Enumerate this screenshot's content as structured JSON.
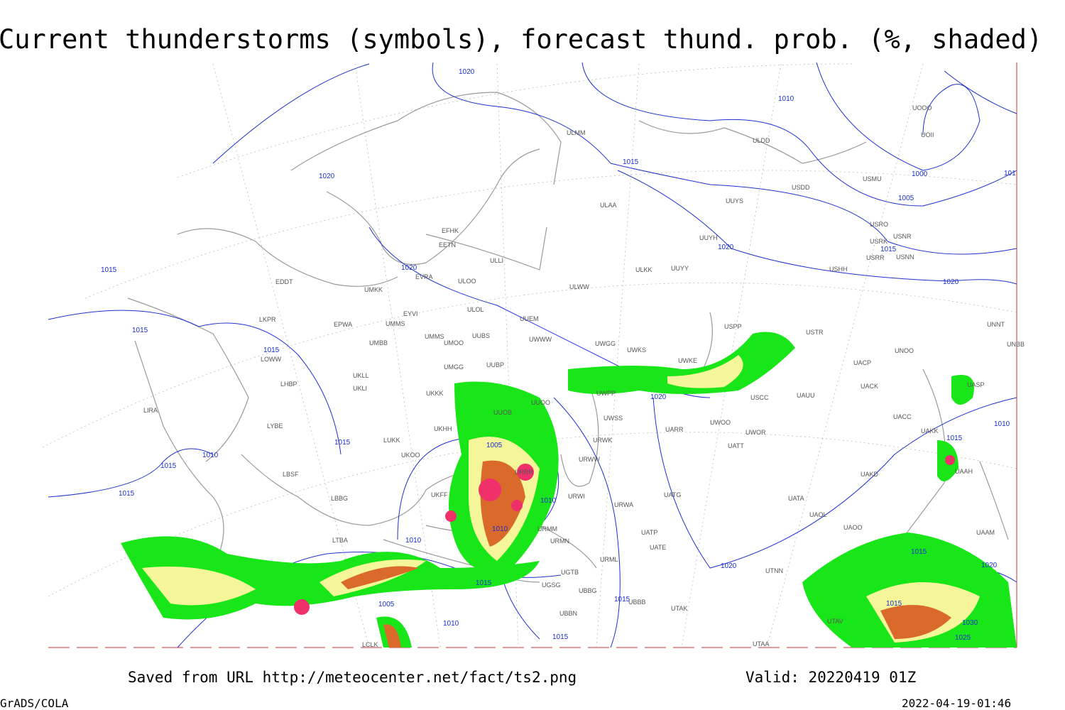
{
  "header": {
    "title": "Current thunderstorms (symbols), forecast thund. prob. (%, shaded)"
  },
  "footer": {
    "source": "Saved from URL http://meteocenter.net/fact/ts2.png",
    "valid": "Valid: 20220419 01Z",
    "software": "GrADS/COLA",
    "timestamp": "2022-04-19-01:46"
  },
  "isobar_labels": [
    "1020",
    "1010",
    "1015",
    "1020",
    "1000",
    "1005",
    "1015",
    "1020",
    "1020",
    "1020",
    "1015",
    "1015",
    "1015",
    "1010",
    "1015",
    "1020",
    "1015",
    "1010",
    "1015",
    "1005",
    "1015",
    "1010",
    "1010",
    "1010",
    "1015",
    "1020",
    "1020",
    "1015",
    "1005",
    "1015",
    "1015",
    "1010",
    "1015",
    "1030",
    "1025",
    "101"
  ],
  "stations": [
    "ULMM",
    "ULDD",
    "UOOO",
    "UOII",
    "ULAA",
    "UUYS",
    "USDD",
    "USMU",
    "USRO",
    "USRK",
    "USNR",
    "USRR",
    "USNN",
    "EFHK",
    "EETN",
    "ULLI",
    "UUYH",
    "ULKK",
    "UUYY",
    "USHH",
    "EVRA",
    "ULOO",
    "EDDT",
    "UMKK",
    "ULWW",
    "EYVI",
    "ULOL",
    "UUEM",
    "LKPR",
    "EPWA",
    "UMMS",
    "USPP",
    "USTR",
    "UNNT",
    "UMMS",
    "UMOO",
    "UUBS",
    "UWWW",
    "UNBB",
    "UMBB",
    "LOWW",
    "UWGG",
    "UWKS",
    "UNOO",
    "UWKE",
    "UACP",
    "UUBP",
    "UMGG",
    "UKLL",
    "LHBP",
    "UKLI",
    "UACK",
    "UASP",
    "UKKK",
    "UUOO",
    "UWPP",
    "UAUU",
    "UUOB",
    "USCC",
    "UACC",
    "UAKK",
    "LIRA",
    "LYBE",
    "UWSS",
    "UARR",
    "UWOO",
    "UWOR",
    "UKHH",
    "LUKK",
    "URWK",
    "UATT",
    "UKOO",
    "URWW",
    "UAAH",
    "LBSF",
    "URRR",
    "UAKD",
    "UKFF",
    "URWI",
    "UATG",
    "LBBG",
    "UATA",
    "URWA",
    "UAOL",
    "UAAM",
    "URMM",
    "UATP",
    "UAOO",
    "UATE",
    "URMN",
    "LTBA",
    "URML",
    "UTNN",
    "UGTB",
    "UBBG",
    "UGSG",
    "UBBB",
    "UTAK",
    "UBBN",
    "UTAV",
    "UTAA",
    "LCLK"
  ]
}
